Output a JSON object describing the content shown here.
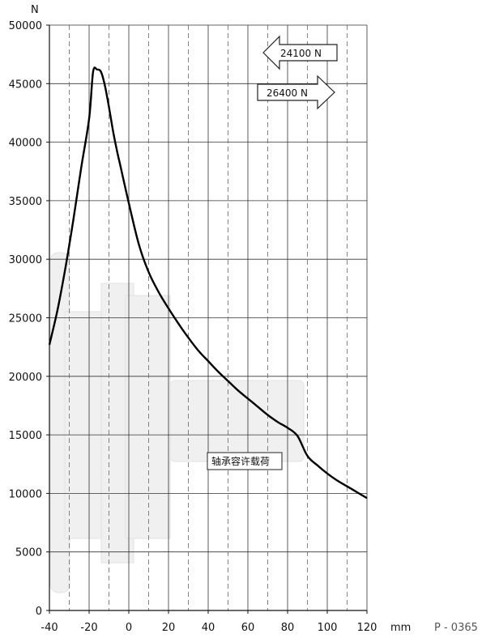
{
  "chart_data": {
    "type": "line",
    "xlabel": "mm",
    "ylabel": "N",
    "xlim": [
      -40,
      120
    ],
    "ylim": [
      0,
      50000
    ],
    "x_ticks": [
      -40,
      -20,
      0,
      20,
      40,
      60,
      80,
      100,
      120
    ],
    "y_ticks": [
      0,
      5000,
      10000,
      15000,
      20000,
      25000,
      30000,
      35000,
      40000,
      45000,
      50000
    ],
    "x_minor_dashed": [
      -30,
      -10,
      10,
      30,
      50,
      70,
      90,
      110
    ],
    "grid": true,
    "series": [
      {
        "name": "轴承容许载荷",
        "color": "#000000",
        "points": [
          [
            -40,
            22700
          ],
          [
            -36,
            25600
          ],
          [
            -32,
            29200
          ],
          [
            -28,
            33300
          ],
          [
            -24,
            37800
          ],
          [
            -20,
            42000
          ],
          [
            -18,
            46000
          ],
          [
            -16,
            46200
          ],
          [
            -14,
            46000
          ],
          [
            -12,
            44800
          ],
          [
            -10,
            43000
          ],
          [
            -8,
            41000
          ],
          [
            -6,
            39300
          ],
          [
            -4,
            37800
          ],
          [
            0,
            34800
          ],
          [
            5,
            31300
          ],
          [
            10,
            28900
          ],
          [
            15,
            27200
          ],
          [
            20,
            25800
          ],
          [
            25,
            24500
          ],
          [
            30,
            23300
          ],
          [
            35,
            22200
          ],
          [
            40,
            21300
          ],
          [
            45,
            20400
          ],
          [
            50,
            19600
          ],
          [
            55,
            18800
          ],
          [
            60,
            18100
          ],
          [
            65,
            17400
          ],
          [
            70,
            16700
          ],
          [
            75,
            16100
          ],
          [
            80,
            15600
          ],
          [
            85,
            14900
          ],
          [
            90,
            13200
          ],
          [
            95,
            12400
          ],
          [
            100,
            11700
          ],
          [
            105,
            11100
          ],
          [
            110,
            10600
          ],
          [
            115,
            10100
          ],
          [
            120,
            9600
          ]
        ]
      }
    ],
    "arrows": [
      {
        "label": "24100 N",
        "direction": "left"
      },
      {
        "label": "26400 N",
        "direction": "right"
      }
    ],
    "curve_label": "轴承容许载荷",
    "reference_code": "P - 0365"
  }
}
